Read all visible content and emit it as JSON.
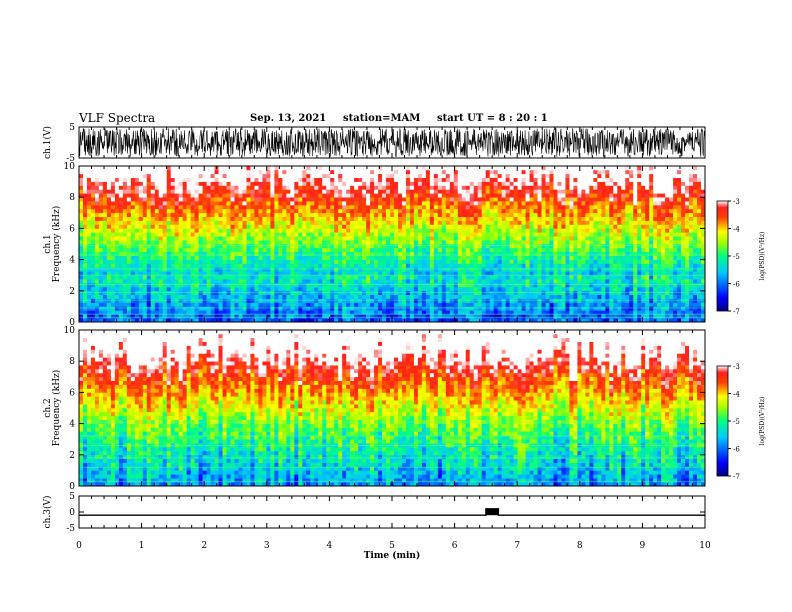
{
  "header": {
    "title": "VLF Spectra",
    "date": "Sep. 13, 2021",
    "station": "station=MAM",
    "start_ut": "start  UT =   8 : 20 : 1"
  },
  "chart_data": [
    {
      "type": "line",
      "panel": "ch1-waveform",
      "ylabel": "ch.1(V)",
      "ylim": [
        -5,
        5
      ],
      "yticks": [
        "5",
        "-5"
      ],
      "xlim": [
        0,
        10
      ],
      "series": [
        {
          "values_range": [
            -5,
            5
          ]
        }
      ],
      "color": "#000000"
    },
    {
      "type": "heatmap",
      "panel": "ch1-spectrogram",
      "ylabel": "ch.1\nFrequency (kHz)",
      "ylim": [
        0,
        10
      ],
      "yticks": [
        "0",
        "2",
        "4",
        "6",
        "8",
        "10"
      ],
      "xlim": [
        0,
        10
      ],
      "colorbar": {
        "label": "log(PSD)(V²/Hz)",
        "range": [
          -7,
          -3
        ],
        "ticks": [
          "-3",
          "-4",
          "-5",
          "-6",
          "-7"
        ]
      }
    },
    {
      "type": "heatmap",
      "panel": "ch2-spectrogram",
      "ylabel": "ch.2\nFrequency (kHz)",
      "ylim": [
        0,
        10
      ],
      "yticks": [
        "0",
        "2",
        "4",
        "6",
        "8",
        "10"
      ],
      "xlim": [
        0,
        10
      ],
      "colorbar": {
        "label": "log(PSD)(V²/Hz)",
        "range": [
          -7,
          -3
        ],
        "ticks": [
          "-3",
          "-4",
          "-5",
          "-6",
          "-7"
        ]
      }
    },
    {
      "type": "line",
      "panel": "ch3-waveform",
      "ylabel": "ch.3(V)",
      "ylim": [
        -5,
        5
      ],
      "yticks": [
        "5",
        "0",
        "-5"
      ],
      "xlim": [
        0,
        10
      ],
      "series": [
        {
          "values": [
            [
              0,
              -1
            ],
            [
              6.5,
              -1
            ],
            [
              6.5,
              1
            ],
            [
              6.7,
              1
            ],
            [
              6.7,
              -1
            ],
            [
              10,
              -1
            ]
          ]
        }
      ],
      "color": "#000000"
    }
  ],
  "xaxis": {
    "label": "Time  (min)",
    "ticks": [
      "0",
      "1",
      "2",
      "3",
      "4",
      "5",
      "6",
      "7",
      "8",
      "9",
      "10"
    ]
  }
}
